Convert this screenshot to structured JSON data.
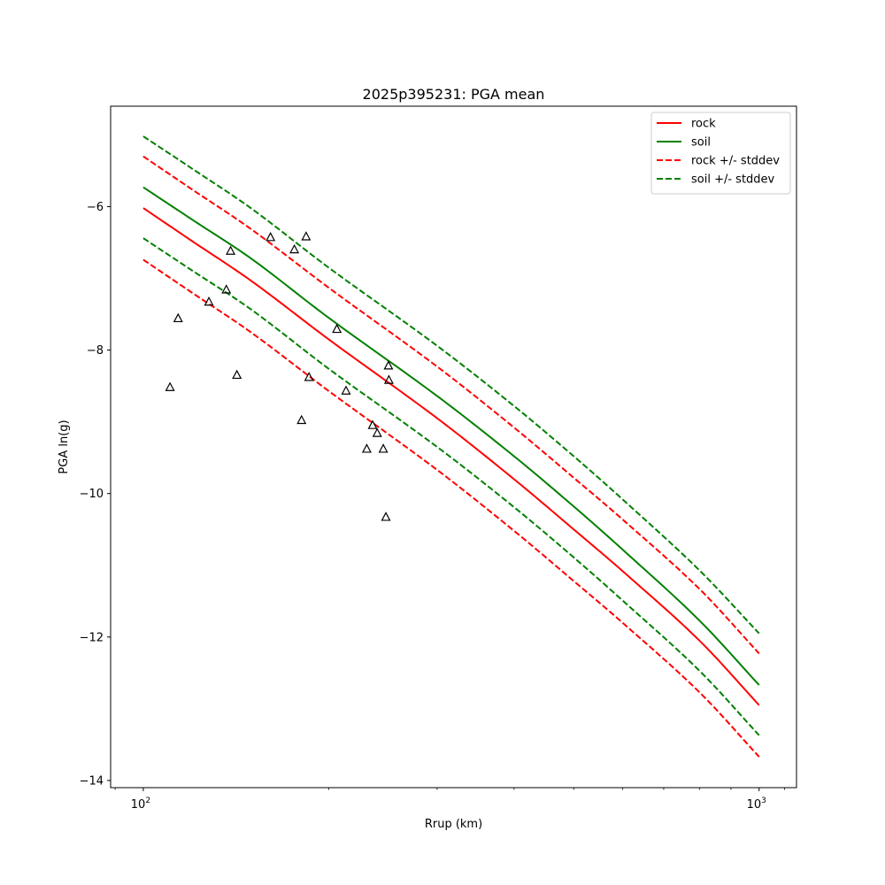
{
  "chart_data": {
    "type": "line",
    "title": "2025p395231: PGA mean",
    "xlabel": "Rrup (km)",
    "ylabel": "PGA ln(g)",
    "xscale": "log",
    "xlim": [
      88.5,
      1150
    ],
    "ylim": [
      -14.1,
      -4.6
    ],
    "xticks": [
      {
        "value": 100,
        "base": "10",
        "exp": "2"
      },
      {
        "value": 1000,
        "base": "10",
        "exp": "3"
      }
    ],
    "yticks": [
      {
        "value": -6,
        "label": "−6"
      },
      {
        "value": -8,
        "label": "−8"
      },
      {
        "value": -10,
        "label": "−10"
      },
      {
        "value": -12,
        "label": "−12"
      },
      {
        "value": -14,
        "label": "−14"
      }
    ],
    "grid": false,
    "legend_position": "top-right",
    "series": [
      {
        "name": "rock",
        "color": "#ff0000",
        "dashed": false,
        "x": [
          100,
          120,
          150,
          200,
          300,
          400,
          500,
          600,
          800,
          1000
        ],
        "y": [
          -6.02,
          -6.48,
          -7.04,
          -7.85,
          -8.95,
          -9.8,
          -10.5,
          -11.08,
          -12.05,
          -12.95
        ]
      },
      {
        "name": "soil",
        "color": "#008000",
        "dashed": false,
        "x": [
          100,
          120,
          150,
          200,
          300,
          400,
          500,
          600,
          800,
          1000
        ],
        "y": [
          -5.73,
          -6.18,
          -6.73,
          -7.55,
          -8.64,
          -9.48,
          -10.18,
          -10.78,
          -11.77,
          -12.67
        ]
      },
      {
        "name": "rock +/- stddev",
        "color": "#ff0000",
        "dashed": true,
        "x": [
          100,
          120,
          150,
          200,
          300,
          400,
          500,
          600,
          800,
          1000
        ],
        "y": [
          -5.3,
          -5.76,
          -6.32,
          -7.13,
          -8.23,
          -9.08,
          -9.78,
          -10.36,
          -11.33,
          -12.23
        ]
      },
      {
        "name": "",
        "color": "#ff0000",
        "dashed": true,
        "x": [
          100,
          120,
          150,
          200,
          300,
          400,
          500,
          600,
          800,
          1000
        ],
        "y": [
          -6.74,
          -7.2,
          -7.76,
          -8.57,
          -9.67,
          -10.52,
          -11.22,
          -11.8,
          -12.77,
          -13.67
        ]
      },
      {
        "name": "soil +/- stddev",
        "color": "#008000",
        "dashed": true,
        "x": [
          100,
          120,
          150,
          200,
          300,
          400,
          500,
          600,
          800,
          1000
        ],
        "y": [
          -5.02,
          -5.47,
          -6.03,
          -6.85,
          -7.94,
          -8.78,
          -9.48,
          -10.08,
          -11.07,
          -11.95
        ]
      },
      {
        "name": "",
        "color": "#008000",
        "dashed": true,
        "x": [
          100,
          120,
          150,
          200,
          300,
          400,
          500,
          600,
          800,
          1000
        ],
        "y": [
          -6.44,
          -6.89,
          -7.44,
          -8.26,
          -9.35,
          -10.19,
          -10.89,
          -11.49,
          -12.47,
          -13.37
        ]
      }
    ],
    "observations": {
      "marker": "triangle",
      "x": [
        110.5,
        113.9,
        127.8,
        136.4,
        138.6,
        141.9,
        160.9,
        175.9,
        180.7,
        183.8,
        185.8,
        206.2,
        213.4,
        230.6,
        235.7,
        239.8,
        245.3,
        247.7,
        250.1,
        250.5
      ],
      "y": [
        -8.52,
        -7.56,
        -7.33,
        -7.16,
        -6.62,
        -8.35,
        -6.43,
        -6.6,
        -8.98,
        -6.42,
        -8.38,
        -7.71,
        -8.57,
        -9.38,
        -9.05,
        -9.16,
        -9.38,
        -10.33,
        -8.22,
        -8.42
      ]
    }
  }
}
